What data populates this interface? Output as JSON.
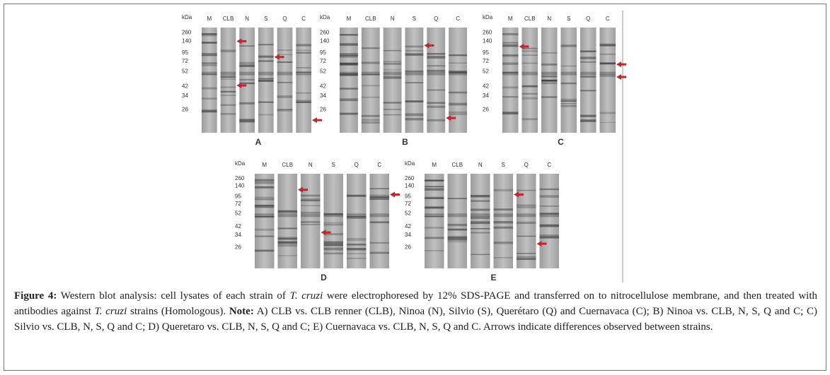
{
  "panels": [
    {
      "label": "A",
      "unit": "kDa",
      "lanes": [
        "M",
        "CLB",
        "N",
        "S",
        "Q",
        "C"
      ],
      "markers": [
        "260",
        "140",
        "95",
        "72",
        "52",
        "42",
        "34",
        "26"
      ]
    },
    {
      "label": "B",
      "unit": "kDa",
      "lanes": [
        "M",
        "CLB",
        "N",
        "S",
        "Q",
        "C"
      ],
      "markers": [
        "260",
        "140",
        "95",
        "72",
        "52",
        "42",
        "34",
        "26"
      ]
    },
    {
      "label": "C",
      "unit": "kDa",
      "lanes": [
        "M",
        "CLB",
        "N",
        "S",
        "Q",
        "C"
      ],
      "markers": [
        "260",
        "140",
        "95",
        "72",
        "52",
        "42",
        "34",
        "26"
      ]
    },
    {
      "label": "D",
      "unit": "kDa",
      "lanes": [
        "M",
        "CLB",
        "N",
        "S",
        "Q",
        "C"
      ],
      "markers": [
        "260",
        "140",
        "95",
        "72",
        "52",
        "42",
        "34",
        "26"
      ]
    },
    {
      "label": "E",
      "unit": "kDa",
      "lanes": [
        "M",
        "CLB",
        "N",
        "S",
        "Q",
        "C"
      ],
      "markers": [
        "260",
        "140",
        "95",
        "72",
        "52",
        "42",
        "34",
        "26"
      ]
    }
  ],
  "caption": {
    "segments": [
      {
        "text": "Figure 4:",
        "style": "bold"
      },
      {
        "text": " Western blot analysis: cell lysates of each strain of ",
        "style": "normal"
      },
      {
        "text": "T. cruzi",
        "style": "italic"
      },
      {
        "text": " were electrophoresed by 12% SDS-PAGE and transferred on to nitrocellulose membrane, and then treated with antibodies against ",
        "style": "normal"
      },
      {
        "text": "T. cruzi",
        "style": "italic"
      },
      {
        "text": " strains (Homologous). ",
        "style": "normal"
      },
      {
        "text": "Note:",
        "style": "bold"
      },
      {
        "text": " A) CLB vs. CLB renner (CLB), Ninoa (N), Silvio (S), Querétaro (Q) and Cuernavaca (C); B) Ninoa vs. CLB, N, S, Q and C; C) Silvio vs. CLB, N, S, Q and C; D) Queretaro vs. CLB, N, S, Q and C; E) Cuernavaca vs. CLB, N, S, Q and C. Arrows indicate differences observed between strains.",
        "style": "normal"
      }
    ]
  }
}
